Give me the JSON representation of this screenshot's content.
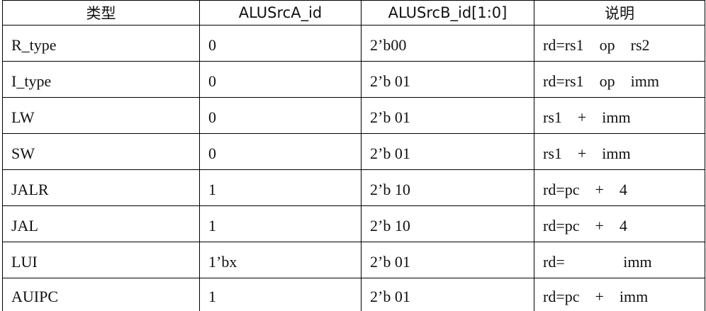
{
  "table": {
    "headers": [
      "类型",
      "ALUSrcA_id",
      "ALUSrcB_id[1:0]",
      "说明"
    ],
    "rows": [
      [
        "R_type",
        "0",
        "2’b00",
        "rd=rs1    op    rs2"
      ],
      [
        "I_type",
        "0",
        "2’b 01",
        "rd=rs1    op    imm"
      ],
      [
        "LW",
        "0",
        "2’b 01",
        "rs1    +    imm"
      ],
      [
        "SW",
        "0",
        "2’b 01",
        "rs1    +    imm"
      ],
      [
        "JALR",
        "1",
        "2’b 10",
        "rd=pc    +    4"
      ],
      [
        "JAL",
        "1",
        "2’b 10",
        "rd=pc    +    4"
      ],
      [
        "LUI",
        "1’bx",
        "2’b 01",
        "rd=               imm"
      ],
      [
        "AUIPC",
        "1",
        "2’b 01",
        "rd=pc    +    imm"
      ]
    ]
  }
}
